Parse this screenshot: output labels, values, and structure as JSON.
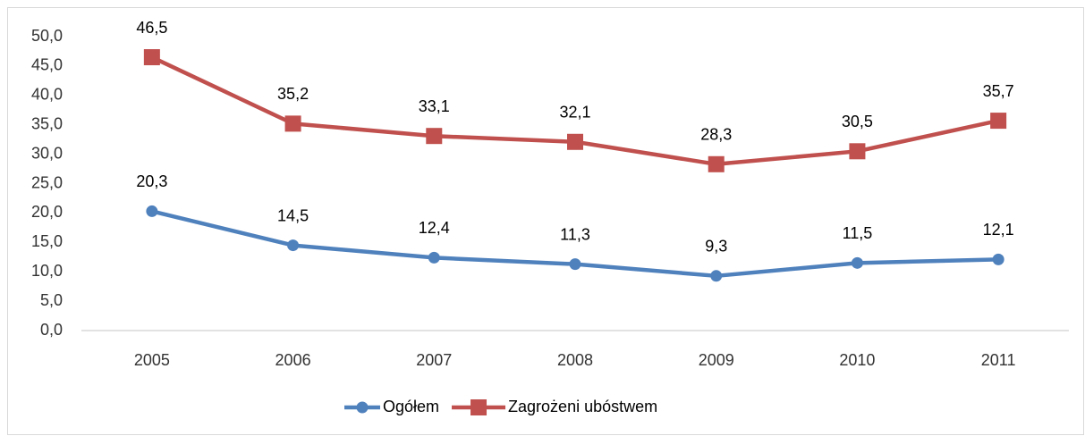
{
  "chart_data": {
    "type": "line",
    "categories": [
      "2005",
      "2006",
      "2007",
      "2008",
      "2009",
      "2010",
      "2011"
    ],
    "series": [
      {
        "name": "Ogółem",
        "color": "#4f81bd",
        "marker": "circle",
        "values": [
          20.3,
          14.5,
          12.4,
          11.3,
          9.3,
          11.5,
          12.1
        ],
        "value_labels": [
          "20,3",
          "14,5",
          "12,4",
          "11,3",
          "9,3",
          "11,5",
          "12,1"
        ]
      },
      {
        "name": "Zagrożeni ubóstwem",
        "color": "#c0504d",
        "marker": "square",
        "values": [
          46.5,
          35.2,
          33.1,
          32.1,
          28.3,
          30.5,
          35.7
        ],
        "value_labels": [
          "46,5",
          "35,2",
          "33,1",
          "32,1",
          "28,3",
          "30,5",
          "35,7"
        ]
      }
    ],
    "ylim": [
      0,
      50
    ],
    "yticks": [
      {
        "value": 0,
        "label": "0,0"
      },
      {
        "value": 5,
        "label": "5,0"
      },
      {
        "value": 10,
        "label": "10,0"
      },
      {
        "value": 15,
        "label": "15,0"
      },
      {
        "value": 20,
        "label": "20,0"
      },
      {
        "value": 25,
        "label": "25,0"
      },
      {
        "value": 30,
        "label": "30,0"
      },
      {
        "value": 35,
        "label": "35,0"
      },
      {
        "value": 40,
        "label": "40,0"
      },
      {
        "value": 45,
        "label": "45,0"
      },
      {
        "value": 50,
        "label": "50,0"
      }
    ],
    "grid": false,
    "legend": "bottom"
  }
}
